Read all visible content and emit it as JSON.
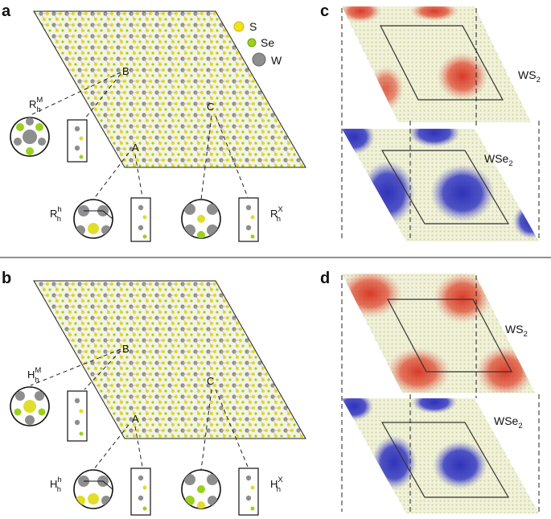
{
  "panels": {
    "a": {
      "label": "a",
      "sites": {
        "A": "A",
        "B": "B",
        "C": "C"
      },
      "stackings": [
        {
          "main": "R",
          "sub": "h",
          "sup": "M"
        },
        {
          "main": "R",
          "sub": "h",
          "sup": "h"
        },
        {
          "main": "R",
          "sub": "h",
          "sup": "X"
        }
      ]
    },
    "b": {
      "label": "b",
      "sites": {
        "A": "A",
        "B": "B",
        "C": "C"
      },
      "stackings": [
        {
          "main": "H",
          "sub": "h",
          "sup": "M"
        },
        {
          "main": "H",
          "sub": "h",
          "sup": "h"
        },
        {
          "main": "H",
          "sub": "h",
          "sup": "X"
        }
      ]
    },
    "c": {
      "label": "c",
      "top_layer": {
        "main": "WS",
        "sub": "2"
      },
      "bottom_layer": {
        "main": "WSe",
        "sub": "2"
      }
    },
    "d": {
      "label": "d",
      "top_layer": {
        "main": "WS",
        "sub": "2"
      },
      "bottom_layer": {
        "main": "WSe",
        "sub": "2"
      }
    }
  },
  "legend": [
    {
      "label": "S",
      "color": "#f0e31c"
    },
    {
      "label": "Se",
      "color": "#9bd11e"
    },
    {
      "label": "W",
      "color": "#8e8e8e"
    }
  ],
  "colors": {
    "red_map": "#d9301f",
    "blue_map": "#2b2fb8",
    "lattice_bg": "#eeeed4"
  }
}
